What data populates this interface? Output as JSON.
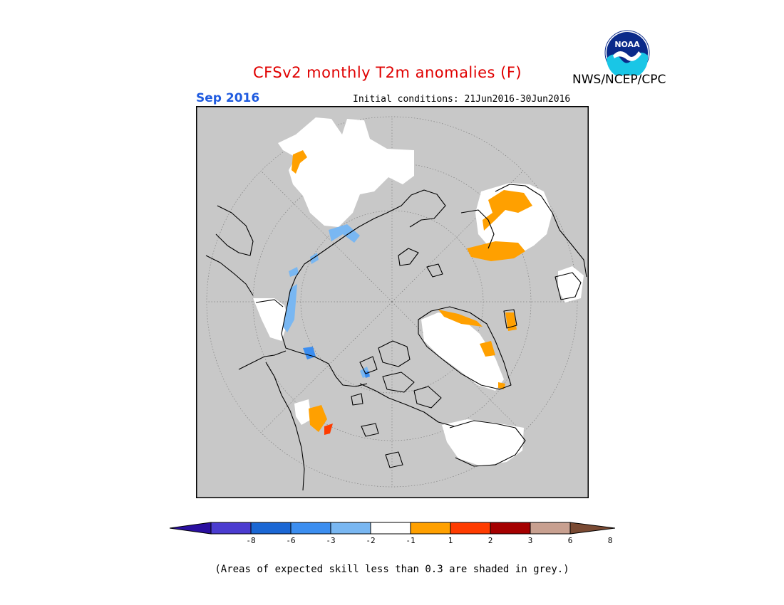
{
  "header": {
    "title": "CFSv2 monthly T2m anomalies (F)",
    "period": "Sep 2016",
    "initial_conditions": "Initial conditions: 21Jun2016-30Jun2016",
    "agency": "NWS/NCEP/CPC",
    "logo_text": "NOAA"
  },
  "colors": {
    "title": "#e00000",
    "period": "#1f5be0",
    "background_skill": "#c8c8c8",
    "coastline": "#000000"
  },
  "legend": {
    "ticks": [
      "-8",
      "-6",
      "-3",
      "-2",
      "-1",
      "1",
      "2",
      "3",
      "6",
      "8"
    ],
    "colors": [
      "#2a0fa0",
      "#4b3cd0",
      "#1b67d4",
      "#3c8ef0",
      "#79b7f2",
      "#ffffff",
      "#ffa000",
      "#ff3c00",
      "#a50000",
      "#c8a090",
      "#7a4a33"
    ],
    "footnote": "(Areas of expected skill less than 0.3 are shaded in grey.)"
  }
}
